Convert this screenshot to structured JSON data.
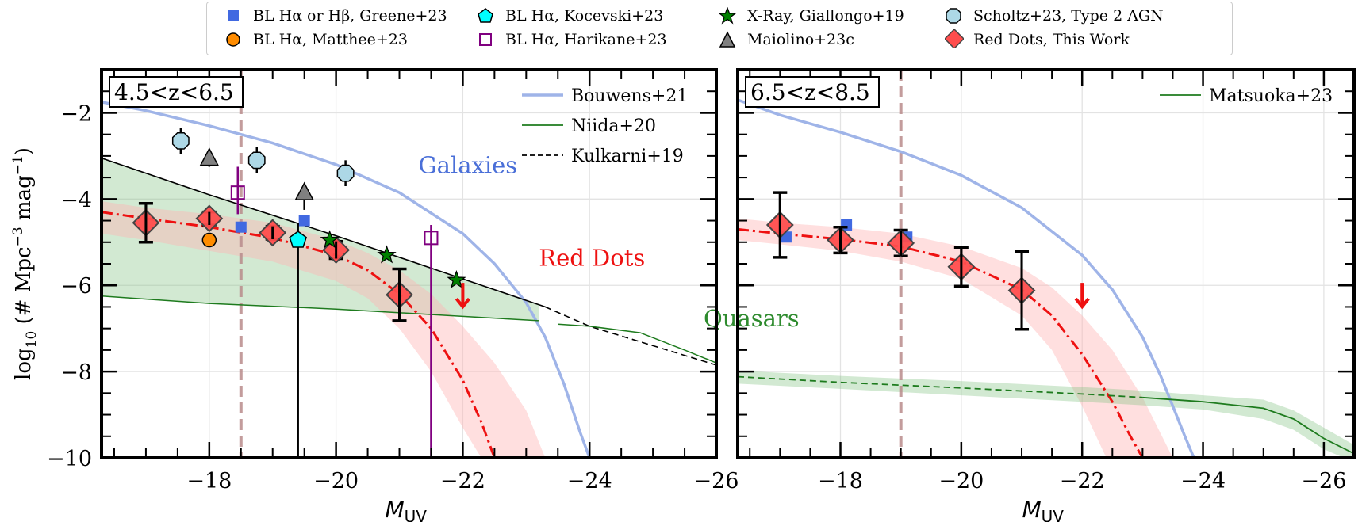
{
  "legend": {
    "items": [
      {
        "label": "BL Hα or Hβ, Greene+23",
        "marker": "square",
        "color": "#4169e1"
      },
      {
        "label": "BL Hα, Matthee+23",
        "marker": "circle",
        "color": "#ff8c00"
      },
      {
        "label": "BL Hα, Kocevski+23",
        "marker": "pentagon",
        "color": "#00ffff"
      },
      {
        "label": "BL Hα, Harikane+23",
        "marker": "open-square",
        "color": "#800080"
      },
      {
        "label": "X-Ray, Giallongo+19",
        "marker": "star",
        "color": "#008000"
      },
      {
        "label": "Maiolino+23c",
        "marker": "triangle",
        "color": "#808080"
      },
      {
        "label": "Scholtz+23, Type 2 AGN",
        "marker": "octagon",
        "color": "#add8e6"
      },
      {
        "label": "Red Dots, This Work",
        "marker": "diamond",
        "color": "#ff4d4d"
      }
    ]
  },
  "chart_data": [
    {
      "type": "scatter",
      "title": "4.5<z<6.5",
      "xlabel": "M_UV",
      "ylabel": "log10 (# Mpc^-3 mag^-1)",
      "xlim": [
        -16.3,
        -26.0
      ],
      "ylim": [
        -10,
        -1
      ],
      "xticks": [
        -18,
        -20,
        -22,
        -24,
        -26
      ],
      "yticks": [
        -2,
        -4,
        -6,
        -8,
        -10
      ],
      "grid": true,
      "completeness_limit_x": -18.5,
      "inline_legend": {
        "placement": "top-right",
        "entries": [
          {
            "label": "Bouwens+21",
            "style": "solid",
            "color": "#9fb4e8"
          },
          {
            "label": "Niida+20",
            "style": "solid",
            "color": "#1e7b1e"
          },
          {
            "label": "Kulkarni+19",
            "style": "dashed",
            "color": "#000000"
          }
        ]
      },
      "annotations": [
        {
          "text": "Galaxies",
          "x": -21.3,
          "y": -3.4,
          "color": "#4a6fd8"
        },
        {
          "text": "Red Dots",
          "x": -23.2,
          "y": -5.55,
          "color": "#ee1111"
        },
        {
          "text": "Quasars",
          "x": -25.8,
          "y": -6.95,
          "color": "#2e8b2e"
        }
      ],
      "series": [
        {
          "name": "Bouwens+21",
          "kind": "line",
          "x": [
            -16.3,
            -17,
            -18,
            -19,
            -20,
            -21,
            -22,
            -22.5,
            -23,
            -23.3,
            -23.6,
            -23.85,
            -24.0
          ],
          "y": [
            -1.75,
            -1.95,
            -2.3,
            -2.7,
            -3.2,
            -3.85,
            -4.8,
            -5.5,
            -6.4,
            -7.2,
            -8.3,
            -9.4,
            -10
          ]
        },
        {
          "name": "Kulkarni+19",
          "kind": "line",
          "x": [
            -16.3,
            -18,
            -20,
            -22,
            -23.3,
            -24,
            -25,
            -26,
            -27
          ],
          "y": [
            -3.05,
            -3.9,
            -4.85,
            -5.85,
            -6.5,
            -6.95,
            -7.4,
            -7.85,
            -8.6
          ]
        },
        {
          "name": "Niida+20",
          "kind": "line",
          "x": [
            -16.3,
            -18,
            -20,
            -22,
            -23.2
          ],
          "y": [
            -6.25,
            -6.42,
            -6.55,
            -6.72,
            -6.82
          ]
        },
        {
          "name": "Niida+20 bright",
          "kind": "line",
          "x": [
            -23.5,
            -24,
            -24.8,
            -25.5,
            -26,
            -26.5,
            -27
          ],
          "y": [
            -6.9,
            -6.95,
            -7.1,
            -7.5,
            -7.8,
            -8.15,
            -8.4
          ]
        },
        {
          "name": "Quasar band",
          "kind": "band",
          "x": [
            -16.3,
            -18,
            -20,
            -22,
            -23.2
          ],
          "upper": [
            -3.05,
            -3.9,
            -4.85,
            -5.85,
            -6.45
          ],
          "lower": [
            -6.25,
            -6.42,
            -6.55,
            -6.72,
            -6.82
          ]
        },
        {
          "name": "Red Dots fit",
          "kind": "line",
          "x": [
            -16.3,
            -17,
            -18,
            -19,
            -20,
            -20.5,
            -21,
            -21.5,
            -22,
            -22.3,
            -22.5
          ],
          "y": [
            -4.3,
            -4.45,
            -4.65,
            -4.9,
            -5.3,
            -5.65,
            -6.2,
            -7.0,
            -8.2,
            -9.2,
            -10
          ]
        },
        {
          "name": "Red Dots band",
          "kind": "band",
          "x": [
            -16.3,
            -17,
            -18,
            -19,
            -20,
            -20.5,
            -21,
            -21.5,
            -22,
            -22.5,
            -23,
            -23.3
          ],
          "upper": [
            -4.05,
            -4.2,
            -4.35,
            -4.55,
            -4.95,
            -5.25,
            -5.65,
            -6.2,
            -6.95,
            -7.8,
            -8.9,
            -10
          ],
          "lower": [
            -4.8,
            -4.95,
            -5.2,
            -5.45,
            -5.9,
            -6.3,
            -7.0,
            -8.0,
            -9.3,
            -10.5,
            -11,
            -11
          ]
        },
        {
          "name": "Red Dots, This Work",
          "kind": "points",
          "marker": "diamond",
          "x": [
            -17.0,
            -18.0,
            -19.0,
            -20.0,
            -21.0
          ],
          "y": [
            -4.55,
            -4.45,
            -4.78,
            -5.18,
            -6.22
          ],
          "yerr_low": [
            0.45,
            0.15,
            0.15,
            0.2,
            0.6
          ],
          "yerr_high": [
            0.45,
            0.15,
            0.15,
            0.2,
            0.6
          ]
        },
        {
          "name": "Red Dots upper limit",
          "kind": "upper-limit",
          "x": [
            -22.0
          ],
          "y": [
            -6.2
          ]
        },
        {
          "name": "Greene+23",
          "kind": "points",
          "marker": "square",
          "x": [
            -18.5,
            -19.5
          ],
          "y": [
            -4.65,
            -4.5
          ]
        },
        {
          "name": "Matthee+23",
          "kind": "points",
          "marker": "circle",
          "x": [
            -18.0
          ],
          "y": [
            -4.95
          ],
          "yerr_low": [
            0.1
          ],
          "yerr_high": [
            0.1
          ]
        },
        {
          "name": "Kocevski+23",
          "kind": "points",
          "marker": "pentagon",
          "x": [
            -19.4
          ],
          "y": [
            -4.95
          ],
          "yerr_low": [
            5.1
          ],
          "yerr_high": [
            0.4
          ]
        },
        {
          "name": "Harikane+23",
          "kind": "points",
          "marker": "open-square",
          "x": [
            -18.45,
            -21.5
          ],
          "y": [
            -3.85,
            -4.9
          ],
          "yerr_low": [
            0.5,
            5.1
          ],
          "yerr_high": [
            0.6,
            0.3
          ]
        },
        {
          "name": "Giallongo+19",
          "kind": "points",
          "marker": "star",
          "x": [
            -19.9,
            -20.8,
            -21.9
          ],
          "y": [
            -4.95,
            -5.3,
            -5.88
          ]
        },
        {
          "name": "Maiolino+23c",
          "kind": "points",
          "marker": "triangle",
          "x": [
            -18.0,
            -19.5
          ],
          "y": [
            -3.05,
            -3.85
          ],
          "yerr_low": [
            0.2,
            0.4
          ],
          "yerr_high": [
            0.0,
            0.0
          ]
        },
        {
          "name": "Scholtz+23",
          "kind": "points",
          "marker": "octagon",
          "x": [
            -17.55,
            -18.75,
            -20.15
          ],
          "y": [
            -2.65,
            -3.1,
            -3.4
          ],
          "yerr_low": [
            0.3,
            0.3,
            0.3
          ],
          "yerr_high": [
            0.3,
            0.3,
            0.3
          ]
        }
      ]
    },
    {
      "type": "scatter",
      "title": "6.5<z<8.5",
      "xlabel": "M_UV",
      "ylabel": "",
      "xlim": [
        -16.3,
        -26.5
      ],
      "ylim": [
        -10,
        -1
      ],
      "xticks": [
        -18,
        -20,
        -22,
        -24,
        -26
      ],
      "yticks": [
        -2,
        -4,
        -6,
        -8,
        -10
      ],
      "grid": true,
      "completeness_limit_x": -19.0,
      "inline_legend": {
        "placement": "top-right",
        "entries": [
          {
            "label": "Matsuoka+23",
            "style": "solid",
            "color": "#1e7b1e"
          }
        ]
      },
      "series": [
        {
          "name": "Bouwens+21",
          "kind": "line",
          "x": [
            -16.3,
            -17,
            -18,
            -19,
            -20,
            -21,
            -22,
            -22.5,
            -23,
            -23.3,
            -23.5,
            -23.7,
            -23.85
          ],
          "y": [
            -1.7,
            -2.05,
            -2.45,
            -2.9,
            -3.45,
            -4.2,
            -5.3,
            -6.1,
            -7.2,
            -8.1,
            -8.8,
            -9.5,
            -10
          ]
        },
        {
          "name": "Red Dots fit",
          "kind": "line",
          "x": [
            -16.3,
            -17,
            -18,
            -19,
            -20,
            -21,
            -21.5,
            -22,
            -22.5,
            -22.8,
            -23.0
          ],
          "y": [
            -4.7,
            -4.8,
            -4.93,
            -5.1,
            -5.45,
            -6.1,
            -6.7,
            -7.6,
            -8.7,
            -9.5,
            -10
          ]
        },
        {
          "name": "Red Dots band",
          "kind": "band",
          "x": [
            -16.3,
            -17,
            -18,
            -19,
            -20,
            -21,
            -21.5,
            -22,
            -22.5,
            -23,
            -23.5
          ],
          "upper": [
            -4.45,
            -4.55,
            -4.65,
            -4.8,
            -5.1,
            -5.6,
            -6.05,
            -6.7,
            -7.5,
            -8.6,
            -10
          ],
          "lower": [
            -4.95,
            -5.05,
            -5.2,
            -5.45,
            -5.85,
            -6.7,
            -7.5,
            -8.8,
            -10.3,
            -11,
            -11
          ]
        },
        {
          "name": "Matsuoka+23 extrapolated",
          "kind": "line",
          "style": "dashed",
          "x": [
            -16.3,
            -18,
            -20,
            -22,
            -23
          ],
          "y": [
            -8.12,
            -8.25,
            -8.38,
            -8.52,
            -8.6
          ]
        },
        {
          "name": "Matsuoka+23",
          "kind": "line",
          "x": [
            -23,
            -24,
            -25,
            -25.5,
            -26,
            -26.5
          ],
          "y": [
            -8.6,
            -8.7,
            -8.85,
            -9.1,
            -9.55,
            -9.9
          ]
        },
        {
          "name": "Matsuoka+23 band",
          "kind": "band",
          "x": [
            -16.3,
            -18,
            -20,
            -22,
            -23,
            -24,
            -25,
            -25.5,
            -26,
            -26.5
          ],
          "upper": [
            -7.98,
            -8.1,
            -8.22,
            -8.36,
            -8.44,
            -8.55,
            -8.65,
            -8.9,
            -9.3,
            -9.7
          ],
          "lower": [
            -8.28,
            -8.4,
            -8.55,
            -8.7,
            -8.78,
            -8.88,
            -9.1,
            -9.35,
            -9.8,
            -10.1
          ]
        },
        {
          "name": "Red Dots, This Work",
          "kind": "points",
          "marker": "diamond",
          "x": [
            -17.0,
            -18.0,
            -19.0,
            -20.0,
            -21.0
          ],
          "y": [
            -4.6,
            -4.95,
            -5.02,
            -5.57,
            -6.12
          ],
          "yerr_low": [
            0.75,
            0.3,
            0.3,
            0.45,
            0.9
          ],
          "yerr_high": [
            0.75,
            0.3,
            0.3,
            0.45,
            0.9
          ]
        },
        {
          "name": "Red Dots upper limit",
          "kind": "upper-limit",
          "x": [
            -22.0
          ],
          "y": [
            -6.2
          ]
        },
        {
          "name": "Greene+23",
          "kind": "points",
          "marker": "square",
          "x": [
            -17.1,
            -18.1,
            -19.1
          ],
          "y": [
            -4.88,
            -4.6,
            -4.88
          ]
        }
      ]
    }
  ]
}
